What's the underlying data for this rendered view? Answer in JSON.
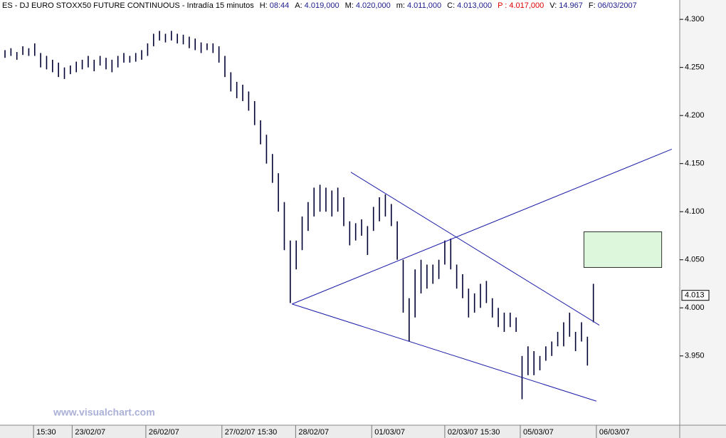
{
  "header": {
    "title": "ES - DJ EURO STOXX50 FUTURE CONTINUOUS - Intradía 15 minutos",
    "stats": [
      {
        "label": "H:",
        "value": "08:44"
      },
      {
        "label": "A:",
        "value": "4.019,000"
      },
      {
        "label": "M:",
        "value": "4.020,000"
      },
      {
        "label": "m:",
        "value": "4.011,000"
      },
      {
        "label": "C:",
        "value": "4.013,000"
      },
      {
        "label": "P :",
        "value": "4.017,000",
        "color": "#dd0000"
      },
      {
        "label": "V:",
        "value": "14.967"
      },
      {
        "label": "F:",
        "value": "06/03/2007"
      }
    ]
  },
  "watermark": "www.visualchart.com",
  "chart_data": {
    "type": "ohlc",
    "color": "#000033",
    "high": [
      4.268,
      4.27,
      4.266,
      4.272,
      4.27,
      4.275,
      4.265,
      4.262,
      4.258,
      4.255,
      4.25,
      4.252,
      4.256,
      4.258,
      4.262,
      4.258,
      4.262,
      4.26,
      4.258,
      4.262,
      4.265,
      4.262,
      4.265,
      4.268,
      4.275,
      4.285,
      4.288,
      4.285,
      4.288,
      4.285,
      4.284,
      4.282,
      4.28,
      4.276,
      4.275,
      4.275,
      4.272,
      4.262,
      4.245,
      4.235,
      4.232,
      4.225,
      4.215,
      4.195,
      4.18,
      4.16,
      4.14,
      4.11,
      4.07,
      4.07,
      4.095,
      4.11,
      4.125,
      4.128,
      4.125,
      4.122,
      4.125,
      4.115,
      4.09,
      4.088,
      4.092,
      4.085,
      4.105,
      4.115,
      4.118,
      4.108,
      4.09,
      4.05,
      4.01,
      4.04,
      4.05,
      4.045,
      4.045,
      4.05,
      4.07,
      4.072,
      4.045,
      4.035,
      4.02,
      4.015,
      4.025,
      4.028,
      4.01,
      4.0,
      3.995,
      3.995,
      3.99,
      3.95,
      3.96,
      3.955,
      3.95,
      3.96,
      3.965,
      3.975,
      3.985,
      3.995,
      3.975,
      3.985,
      3.97,
      4.025
    ],
    "low": [
      4.26,
      4.262,
      4.258,
      4.263,
      4.262,
      4.262,
      4.25,
      4.248,
      4.245,
      4.24,
      4.238,
      4.243,
      4.245,
      4.248,
      4.25,
      4.246,
      4.252,
      4.248,
      4.245,
      4.25,
      4.255,
      4.255,
      4.256,
      4.258,
      4.262,
      4.272,
      4.278,
      4.276,
      4.278,
      4.275,
      4.274,
      4.27,
      4.268,
      4.265,
      4.268,
      4.265,
      4.255,
      4.24,
      4.225,
      4.218,
      4.215,
      4.205,
      4.19,
      4.17,
      4.15,
      4.13,
      4.1,
      4.06,
      4.005,
      4.04,
      4.06,
      4.08,
      4.095,
      4.1,
      4.1,
      4.095,
      4.1,
      4.085,
      4.065,
      4.07,
      4.075,
      4.055,
      4.08,
      4.09,
      4.095,
      4.085,
      4.05,
      3.995,
      3.965,
      3.99,
      4.015,
      4.02,
      4.025,
      4.03,
      4.045,
      4.04,
      4.02,
      4.01,
      3.99,
      3.995,
      4.0,
      4.005,
      3.99,
      3.98,
      3.975,
      3.98,
      3.975,
      3.905,
      3.93,
      3.93,
      3.935,
      3.945,
      3.95,
      3.96,
      3.96,
      3.97,
      3.955,
      3.965,
      3.94,
      3.985
    ],
    "xlim": [
      -0.84,
      113.53
    ],
    "ylim": [
      3.878,
      4.309
    ],
    "yticks": [
      {
        "value": 3.95,
        "label": "3.950"
      },
      {
        "value": 4.0,
        "label": "4.000"
      },
      {
        "value": 4.05,
        "label": "4.050"
      },
      {
        "value": 4.1,
        "label": "4.100"
      },
      {
        "value": 4.15,
        "label": "4.150"
      },
      {
        "value": 4.2,
        "label": "4.200"
      },
      {
        "value": 4.25,
        "label": "4.250"
      },
      {
        "value": 4.3,
        "label": "4.300"
      }
    ],
    "xticks": [
      {
        "value": 4.8,
        "label": "15:30"
      },
      {
        "value": 11.3,
        "label": "23/02/07"
      },
      {
        "value": 23.7,
        "label": "26/02/07"
      },
      {
        "value": 36.5,
        "label": "27/02/07 15:30"
      },
      {
        "value": 48.9,
        "label": "28/02/07"
      },
      {
        "value": 61.7,
        "label": "01/03/07"
      },
      {
        "value": 74,
        "label": "02/03/07 15:30"
      },
      {
        "value": 86.7,
        "label": "05/03/07"
      },
      {
        "value": 99.5,
        "label": "06/03/07"
      }
    ],
    "line_color": "#1a1aa8",
    "lines": [
      {
        "x": [
          48.3,
          112.2
        ],
        "y": [
          4.004,
          4.165
        ]
      },
      {
        "x": [
          48.3,
          99.5
        ],
        "y": [
          4.004,
          3.903
        ]
      },
      {
        "x": [
          58.2,
          100
        ],
        "y": [
          4.141,
          3.982
        ]
      }
    ],
    "zone": {
      "x": [
        97.4,
        110.5
      ],
      "y": [
        4.042,
        4.079
      ],
      "color": "#ddf7dd"
    },
    "last_price": 4.013
  }
}
